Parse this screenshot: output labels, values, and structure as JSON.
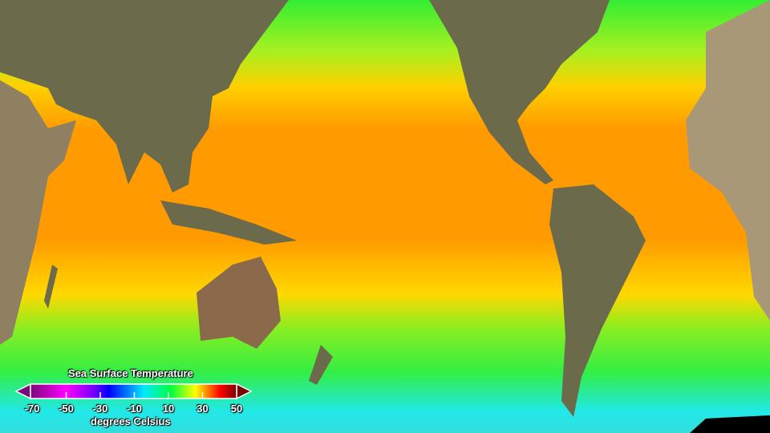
{
  "legend": {
    "title": "Sea Surface Temperature",
    "units": "degrees Celsius",
    "ticks": [
      "-70",
      "-50",
      "-30",
      "-10",
      "10",
      "30",
      "50"
    ],
    "range": [
      -70,
      50
    ],
    "colormap": [
      "#7a0a7a",
      "#ff00ff",
      "#8000ff",
      "#0000ff",
      "#00e0ff",
      "#00ff40",
      "#ffff00",
      "#ff0000",
      "#7a0000"
    ]
  },
  "colors": {
    "land": "#6b6a4a",
    "desert": "#b8a880",
    "ice": "#d8dcdc",
    "tropics": "#ff9a00",
    "midlat": "#33ee33",
    "polar": "#22e8e8"
  }
}
